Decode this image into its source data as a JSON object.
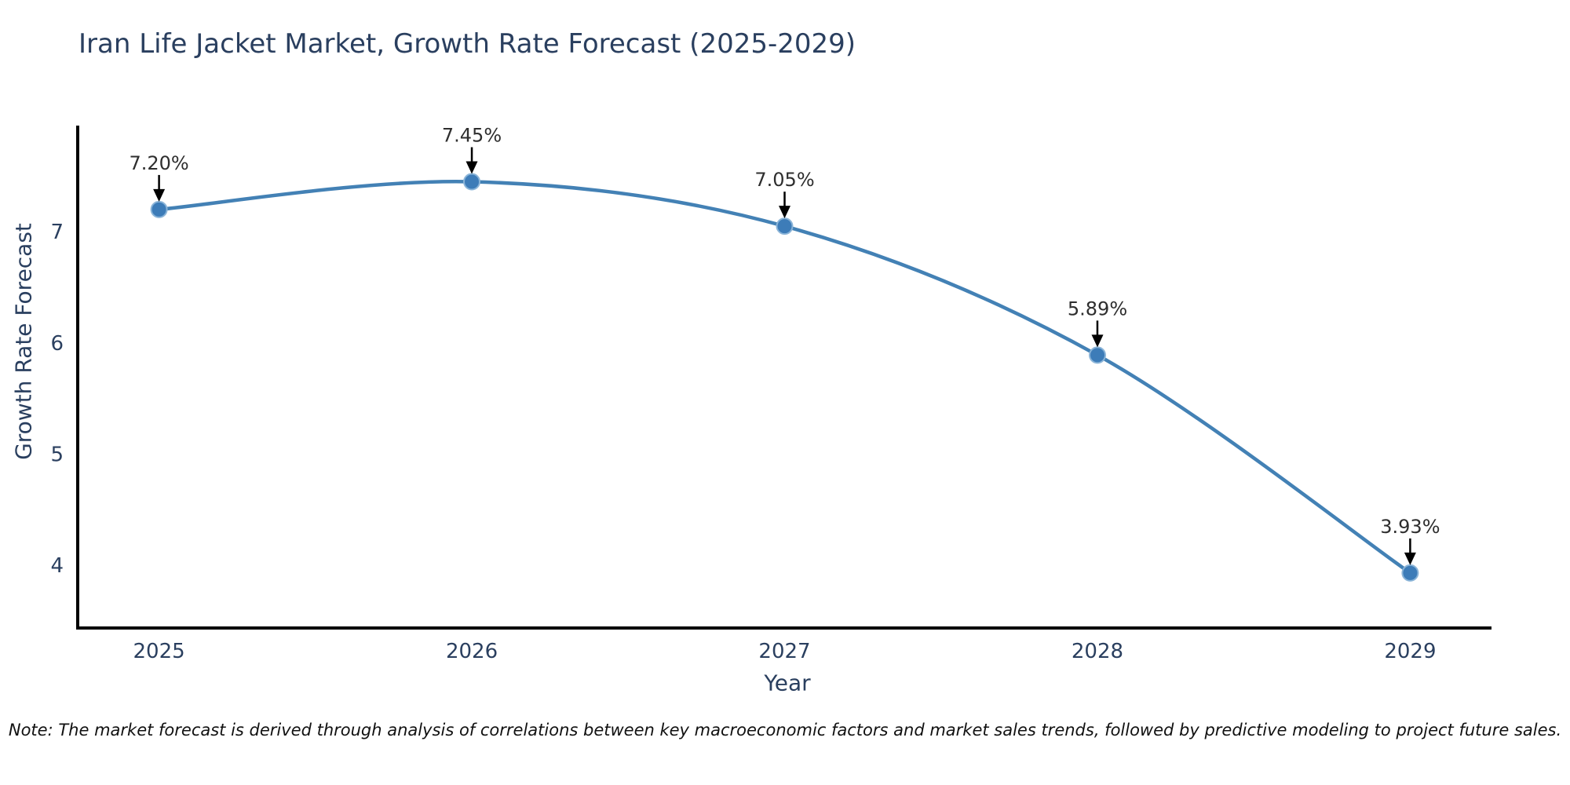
{
  "title": "Iran Life Jacket Market, Growth Rate Forecast (2025-2029)",
  "note": "Note: The market forecast is derived through analysis of correlations between key macroeconomic factors and market sales trends, followed by predictive modeling to project future sales.",
  "chart_data": {
    "type": "line",
    "title": "Iran Life Jacket Market, Growth Rate Forecast (2025-2029)",
    "xlabel": "Year",
    "ylabel": "Growth Rate Forecast",
    "x": [
      2025,
      2026,
      2027,
      2028,
      2029
    ],
    "series": [
      {
        "name": "Growth Rate Forecast",
        "values": [
          7.2,
          7.45,
          7.05,
          5.89,
          3.93
        ],
        "labels": [
          "7.20%",
          "7.45%",
          "7.05%",
          "5.89%",
          "3.93%"
        ]
      }
    ],
    "xticks": [
      "2025",
      "2026",
      "2027",
      "2028",
      "2029"
    ],
    "yticks": [
      4,
      5,
      6,
      7
    ],
    "x_range": [
      2024.74,
      2029.26
    ],
    "y_range": [
      3.435,
      7.955
    ],
    "line_shape": "spline",
    "grid": false,
    "legend": "none",
    "annotations_have_arrows": true,
    "colors": {
      "line": "#4381b5",
      "marker_fill": "#3d7cb8",
      "marker_edge": "#8ab4d8",
      "axis": "#000000",
      "tick_label": "#2a3f5f",
      "title": "#2a3f5f",
      "annotation_text": "#2e2e2e",
      "annotation_arrow": "#000000",
      "background": "#ffffff"
    }
  }
}
